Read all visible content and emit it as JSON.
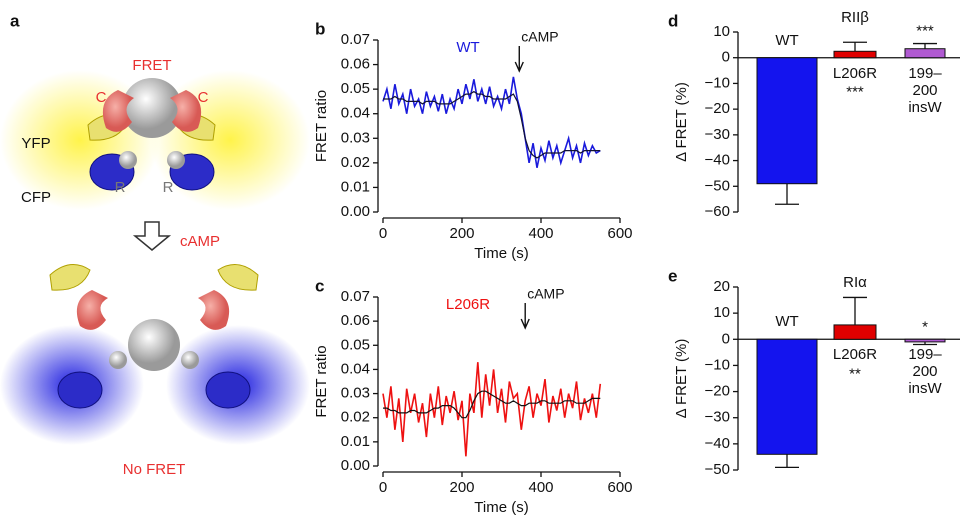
{
  "diagram": {
    "panel": "a",
    "labels": [
      "FRET",
      "C",
      "C",
      "YFP",
      "CFP",
      "R",
      "R",
      "cAMP",
      "No FRET"
    ]
  },
  "chart_data": [
    {
      "type": "line",
      "panel": "b",
      "xlabel": "Time (s)",
      "ylabel": "FRET ratio",
      "x": [
        0,
        10,
        20,
        30,
        40,
        50,
        60,
        70,
        80,
        90,
        100,
        110,
        120,
        130,
        140,
        150,
        160,
        170,
        180,
        190,
        200,
        210,
        220,
        230,
        240,
        250,
        260,
        270,
        280,
        290,
        300,
        310,
        320,
        330,
        340,
        350,
        360,
        370,
        380,
        390,
        400,
        410,
        420,
        430,
        440,
        450,
        460,
        470,
        480,
        490,
        500,
        510,
        520,
        530,
        540,
        550
      ],
      "series": [
        {
          "name": "WT",
          "color": "#1a1adc",
          "values": [
            0.045,
            0.05,
            0.042,
            0.052,
            0.044,
            0.048,
            0.04,
            0.05,
            0.043,
            0.046,
            0.04,
            0.049,
            0.043,
            0.047,
            0.041,
            0.048,
            0.04,
            0.046,
            0.042,
            0.05,
            0.044,
            0.052,
            0.046,
            0.054,
            0.045,
            0.05,
            0.044,
            0.051,
            0.043,
            0.047,
            0.042,
            0.05,
            0.044,
            0.055,
            0.046,
            0.04,
            0.03,
            0.02,
            0.028,
            0.018,
            0.026,
            0.021,
            0.029,
            0.022,
            0.027,
            0.02,
            0.025,
            0.03,
            0.022,
            0.027,
            0.02,
            0.028,
            0.023,
            0.027,
            0.024,
            0.025
          ]
        },
        {
          "color": "#111133",
          "values": [
            0.046,
            0.046,
            0.046,
            0.047,
            0.046,
            0.046,
            0.045,
            0.045,
            0.045,
            0.045,
            0.044,
            0.045,
            0.045,
            0.045,
            0.044,
            0.044,
            0.044,
            0.044,
            0.045,
            0.046,
            0.047,
            0.048,
            0.048,
            0.049,
            0.048,
            0.048,
            0.047,
            0.047,
            0.046,
            0.046,
            0.046,
            0.046,
            0.047,
            0.048,
            0.045,
            0.038,
            0.03,
            0.025,
            0.023,
            0.022,
            0.023,
            0.024,
            0.024,
            0.024,
            0.024,
            0.024,
            0.025,
            0.025,
            0.025,
            0.025,
            0.024,
            0.025,
            0.025,
            0.025,
            0.025,
            0.025
          ]
        }
      ],
      "annotation": {
        "text": "cAMP",
        "x": 345
      },
      "xlim": [
        0,
        600
      ],
      "xticks": [
        0,
        200,
        400,
        600
      ],
      "ylim": [
        0,
        0.07
      ],
      "yticks": [
        {
          "value": 0,
          "label": "0.00"
        },
        0.01,
        0.02,
        0.03,
        0.04,
        0.05,
        0.06,
        0.07
      ]
    },
    {
      "type": "line",
      "panel": "c",
      "xlabel": "Time (s)",
      "ylabel": "FRET ratio",
      "x": [
        0,
        10,
        20,
        30,
        40,
        50,
        60,
        70,
        80,
        90,
        100,
        110,
        120,
        130,
        140,
        150,
        160,
        170,
        180,
        190,
        200,
        210,
        220,
        230,
        240,
        250,
        260,
        270,
        280,
        290,
        300,
        310,
        320,
        330,
        340,
        350,
        360,
        370,
        380,
        390,
        400,
        410,
        420,
        430,
        440,
        450,
        460,
        470,
        480,
        490,
        500,
        510,
        520,
        530,
        540,
        550
      ],
      "series": [
        {
          "name": "L206R",
          "color": "#ee1111",
          "values": [
            0.03,
            0.02,
            0.033,
            0.015,
            0.028,
            0.01,
            0.032,
            0.022,
            0.03,
            0.018,
            0.026,
            0.012,
            0.03,
            0.02,
            0.033,
            0.017,
            0.029,
            0.022,
            0.031,
            0.019,
            0.027,
            0.004,
            0.03,
            0.022,
            0.043,
            0.02,
            0.038,
            0.025,
            0.04,
            0.022,
            0.032,
            0.018,
            0.035,
            0.028,
            0.03,
            0.015,
            0.027,
            0.033,
            0.02,
            0.03,
            0.025,
            0.036,
            0.018,
            0.029,
            0.023,
            0.032,
            0.02,
            0.03,
            0.024,
            0.035,
            0.019,
            0.028,
            0.022,
            0.03,
            0.02,
            0.034
          ]
        },
        {
          "color": "#111111",
          "values": [
            0.024,
            0.024,
            0.023,
            0.023,
            0.022,
            0.022,
            0.022,
            0.023,
            0.023,
            0.022,
            0.022,
            0.022,
            0.023,
            0.024,
            0.024,
            0.025,
            0.025,
            0.025,
            0.024,
            0.022,
            0.02,
            0.02,
            0.023,
            0.027,
            0.03,
            0.031,
            0.031,
            0.03,
            0.029,
            0.028,
            0.027,
            0.026,
            0.026,
            0.027,
            0.026,
            0.025,
            0.025,
            0.026,
            0.026,
            0.026,
            0.027,
            0.027,
            0.026,
            0.026,
            0.026,
            0.026,
            0.027,
            0.027,
            0.027,
            0.026,
            0.026,
            0.026,
            0.027,
            0.028,
            0.028,
            0.028
          ]
        }
      ],
      "annotation": {
        "text": "cAMP",
        "x": 360
      },
      "xlim": [
        0,
        600
      ],
      "xticks": [
        0,
        200,
        400,
        600
      ],
      "ylim": [
        0,
        0.07
      ],
      "yticks": [
        {
          "value": 0,
          "label": "0.00"
        },
        0.01,
        0.02,
        0.03,
        0.04,
        0.05,
        0.06,
        0.07
      ]
    },
    {
      "type": "bar",
      "panel": "d",
      "title": "RIIβ",
      "ylabel": "Δ FRET (%)",
      "categories": [
        "WT",
        "L206R",
        "199–200 insW"
      ],
      "values": [
        -49,
        2.5,
        3.5
      ],
      "errors": [
        8,
        3.5,
        2
      ],
      "colors": [
        "#1414ee",
        "#e00000",
        "#b05ad2"
      ],
      "significance": [
        null,
        "***",
        "***"
      ],
      "ylim": [
        -60,
        10
      ],
      "yticks": [
        {
          "value": 10,
          "label": "10"
        },
        0,
        {
          "value": -10,
          "label": "−10"
        },
        {
          "value": -20,
          "label": "−20"
        },
        {
          "value": -30,
          "label": "−30"
        },
        {
          "value": -40,
          "label": "−40"
        },
        {
          "value": -50,
          "label": "−50"
        },
        {
          "value": -60,
          "label": "−60"
        }
      ]
    },
    {
      "type": "bar",
      "panel": "e",
      "title": "RIα",
      "ylabel": "Δ FRET (%)",
      "categories": [
        "WT",
        "L206R",
        "199–200 insW"
      ],
      "values": [
        -44,
        5.5,
        -1
      ],
      "errors": [
        5,
        10.5,
        1
      ],
      "colors": [
        "#1414ee",
        "#e00000",
        "#b05ad2"
      ],
      "significance": [
        null,
        "**",
        "*"
      ],
      "ylim": [
        -50,
        20
      ],
      "yticks": [
        {
          "value": 20,
          "label": "20"
        },
        {
          "value": 10,
          "label": "10"
        },
        0,
        {
          "value": -10,
          "label": "−10"
        },
        {
          "value": -20,
          "label": "−20"
        },
        {
          "value": -30,
          "label": "−30"
        },
        {
          "value": -40,
          "label": "−40"
        },
        {
          "value": -50,
          "label": "−50"
        }
      ]
    }
  ]
}
